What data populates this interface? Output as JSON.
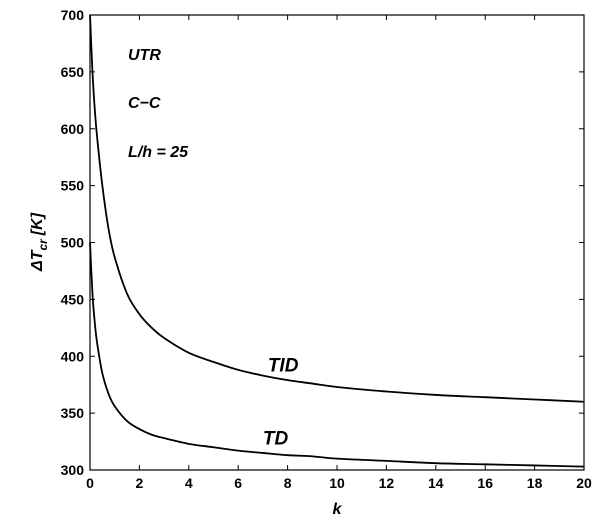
{
  "chart_data": {
    "type": "line",
    "xlabel": "k",
    "ylabel_main": "ΔT",
    "ylabel_sub": "cr",
    "ylabel_unit": "[K]",
    "xlim": [
      0,
      20
    ],
    "ylim": [
      300,
      700
    ],
    "xticks": [
      0,
      2,
      4,
      6,
      8,
      10,
      12,
      14,
      16,
      18,
      20
    ],
    "yticks": [
      300,
      350,
      400,
      450,
      500,
      550,
      600,
      650,
      700
    ],
    "grid": false,
    "annotations": [
      {
        "text": "UTR"
      },
      {
        "text": "C−C"
      },
      {
        "text": "L/h = 25"
      }
    ],
    "series": [
      {
        "label": "TID",
        "label_at": [
          7.2,
          383
        ],
        "x": [
          0,
          0.1,
          0.2,
          0.3,
          0.5,
          0.75,
          1,
          1.5,
          2,
          2.5,
          3,
          4,
          5,
          6,
          7,
          8,
          9,
          10,
          12,
          14,
          16,
          18,
          20
        ],
        "y": [
          700,
          650,
          615,
          590,
          550,
          512,
          487,
          455,
          437,
          425,
          416,
          403,
          395,
          388,
          383,
          379,
          376,
          373,
          369,
          366,
          364,
          362,
          360
        ]
      },
      {
        "label": "TD",
        "label_at": [
          7.0,
          319
        ],
        "x": [
          0,
          0.1,
          0.2,
          0.3,
          0.5,
          0.75,
          1,
          1.5,
          2,
          2.5,
          3,
          4,
          5,
          6,
          7,
          8,
          9,
          10,
          12,
          14,
          16,
          18,
          20
        ],
        "y": [
          500,
          455,
          428,
          410,
          385,
          367,
          356,
          343,
          336,
          331,
          328,
          323,
          320,
          317,
          315,
          313,
          312,
          310,
          308,
          306,
          305,
          304,
          303
        ]
      }
    ]
  }
}
